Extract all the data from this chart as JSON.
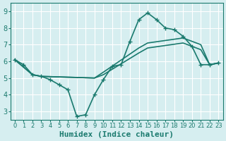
{
  "background_color": "#d6eef0",
  "grid_color": "#ffffff",
  "line_color": "#1a7a6e",
  "line_width": 1.2,
  "markersize": 5,
  "xlabel": "Humidex (Indice chaleur)",
  "xlabel_fontsize": 8,
  "ytick_fontsize": 7,
  "xtick_fontsize": 6,
  "xlim": [
    -0.5,
    23.5
  ],
  "ylim": [
    2.5,
    9.5
  ],
  "yticks": [
    3,
    4,
    5,
    6,
    7,
    8,
    9
  ],
  "xticks": [
    0,
    1,
    2,
    3,
    4,
    5,
    6,
    7,
    8,
    9,
    10,
    11,
    12,
    13,
    14,
    15,
    16,
    17,
    18,
    19,
    20,
    21,
    22,
    23
  ],
  "line_with_markers": {
    "x": [
      0,
      1,
      2,
      3,
      4,
      5,
      6,
      7,
      8,
      9,
      10,
      11,
      12,
      13,
      14,
      15,
      16,
      17,
      18,
      19,
      20,
      21,
      22,
      23
    ],
    "y": [
      6.1,
      5.8,
      5.2,
      5.1,
      4.9,
      4.6,
      4.3,
      2.7,
      2.8,
      4.0,
      4.9,
      5.7,
      5.8,
      7.2,
      8.5,
      8.9,
      8.5,
      8.0,
      7.9,
      7.5,
      6.9,
      5.8,
      5.8,
      5.9
    ]
  },
  "smooth_lines": [
    {
      "x": [
        0,
        2,
        3,
        9,
        10,
        14,
        15,
        19,
        21,
        22,
        23
      ],
      "y": [
        6.1,
        5.2,
        5.1,
        5.0,
        5.2,
        6.5,
        6.8,
        7.1,
        6.7,
        5.8,
        5.9
      ]
    },
    {
      "x": [
        0,
        2,
        3,
        9,
        10,
        14,
        15,
        19,
        21,
        22,
        23
      ],
      "y": [
        6.1,
        5.2,
        5.1,
        5.0,
        5.35,
        6.8,
        7.1,
        7.4,
        7.0,
        5.8,
        5.9
      ]
    }
  ]
}
